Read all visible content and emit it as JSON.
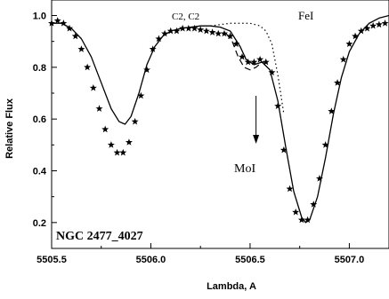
{
  "chart_data": {
    "type": "line",
    "title": "",
    "xlabel": "Lambda, A",
    "ylabel": "Relative Flux",
    "xlim": [
      5505.5,
      5507.2
    ],
    "ylim": [
      0.1,
      1.06
    ],
    "xticks": [
      "5505.5",
      "5506.0",
      "5506.5",
      "5507.0"
    ],
    "yticks": [
      "0.2",
      "0.4",
      "0.6",
      "0.8",
      "1.0"
    ],
    "grid": false,
    "annotations": {
      "object": "NGC 2477_4027",
      "c2": "C2,  C2",
      "fe": "FeI",
      "mo": "MoI",
      "mo_arrow_x": 5506.53
    },
    "series": [
      {
        "style": "stars",
        "x": [
          5505.5,
          5505.53,
          5505.56,
          5505.59,
          5505.62,
          5505.65,
          5505.68,
          5505.71,
          5505.74,
          5505.77,
          5505.8,
          5505.83,
          5505.86,
          5505.89,
          5505.92,
          5505.95,
          5505.98,
          5506.01,
          5506.04,
          5506.07,
          5506.1,
          5506.13,
          5506.16,
          5506.19,
          5506.22,
          5506.25,
          5506.28,
          5506.31,
          5506.34,
          5506.37,
          5506.4,
          5506.43,
          5506.46,
          5506.49,
          5506.52,
          5506.55,
          5506.58,
          5506.61,
          5506.64,
          5506.67,
          5506.7,
          5506.73,
          5506.76,
          5506.79,
          5506.82,
          5506.85,
          5506.88,
          5506.91,
          5506.94,
          5506.97,
          5507.0,
          5507.03,
          5507.06,
          5507.09,
          5507.12,
          5507.15,
          5507.18
        ],
        "y": [
          0.97,
          0.98,
          0.97,
          0.95,
          0.92,
          0.87,
          0.8,
          0.72,
          0.64,
          0.56,
          0.5,
          0.47,
          0.47,
          0.51,
          0.59,
          0.69,
          0.79,
          0.87,
          0.91,
          0.93,
          0.94,
          0.94,
          0.95,
          0.95,
          0.95,
          0.945,
          0.94,
          0.935,
          0.93,
          0.93,
          0.92,
          0.89,
          0.84,
          0.82,
          0.82,
          0.83,
          0.82,
          0.78,
          0.65,
          0.48,
          0.33,
          0.24,
          0.21,
          0.21,
          0.27,
          0.37,
          0.5,
          0.63,
          0.74,
          0.83,
          0.89,
          0.92,
          0.94,
          0.95,
          0.96,
          0.965,
          0.97
        ]
      },
      {
        "style": "solid",
        "x": [
          5505.5,
          5505.55,
          5505.6,
          5505.65,
          5505.7,
          5505.75,
          5505.8,
          5505.84,
          5505.87,
          5505.9,
          5505.94,
          5505.98,
          5506.02,
          5506.06,
          5506.1,
          5506.15,
          5506.2,
          5506.25,
          5506.3,
          5506.35,
          5506.4,
          5506.45,
          5506.48,
          5506.52,
          5506.56,
          5506.6,
          5506.64,
          5506.68,
          5506.72,
          5506.76,
          5506.78,
          5506.8,
          5506.84,
          5506.88,
          5506.92,
          5506.96,
          5507.0,
          5507.05,
          5507.1,
          5507.15,
          5507.2
        ],
        "y": [
          0.97,
          0.97,
          0.95,
          0.91,
          0.84,
          0.74,
          0.64,
          0.59,
          0.58,
          0.61,
          0.7,
          0.81,
          0.88,
          0.92,
          0.94,
          0.95,
          0.955,
          0.96,
          0.96,
          0.955,
          0.94,
          0.88,
          0.83,
          0.81,
          0.82,
          0.79,
          0.67,
          0.49,
          0.32,
          0.22,
          0.2,
          0.21,
          0.3,
          0.45,
          0.62,
          0.76,
          0.86,
          0.93,
          0.97,
          0.99,
          1.0
        ]
      },
      {
        "style": "dotted",
        "x": [
          5506.3,
          5506.35,
          5506.4,
          5506.45,
          5506.5,
          5506.55,
          5506.58,
          5506.61,
          5506.64,
          5506.67
        ],
        "y": [
          0.96,
          0.965,
          0.97,
          0.97,
          0.97,
          0.96,
          0.94,
          0.89,
          0.77,
          0.62
        ]
      },
      {
        "style": "dashed",
        "x": [
          5506.38,
          5506.41,
          5506.44,
          5506.47,
          5506.5,
          5506.53,
          5506.56,
          5506.59
        ],
        "y": [
          0.93,
          0.9,
          0.84,
          0.8,
          0.79,
          0.8,
          0.82,
          0.82
        ]
      }
    ]
  }
}
